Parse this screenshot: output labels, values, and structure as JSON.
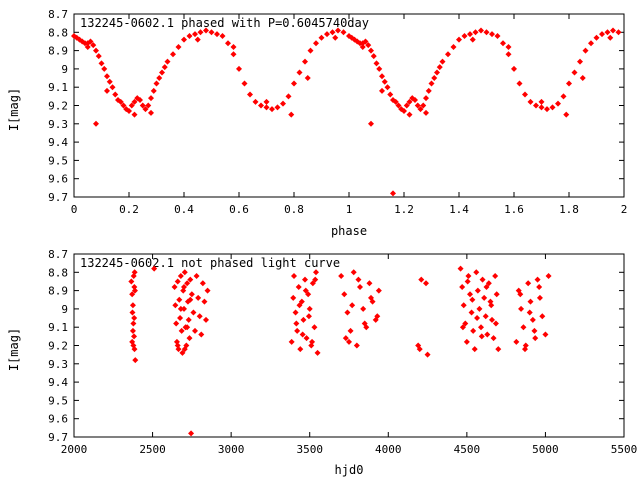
{
  "chart_data": [
    {
      "type": "scatter",
      "title": "132245-0602.1 phased with P=0.6045740day",
      "xlabel": "phase",
      "ylabel": "I[mag]",
      "xlim": [
        0,
        2
      ],
      "ylim": [
        9.7,
        8.7
      ],
      "y_inverted": true,
      "xticks": [
        "0",
        "0.2",
        "0.4",
        "0.6",
        "0.8",
        "1",
        "1.2",
        "1.4",
        "1.6",
        "1.8",
        "2"
      ],
      "yticks": [
        "8.7",
        "8.8",
        "8.9",
        "9",
        "9.1",
        "9.2",
        "9.3",
        "9.4",
        "9.5",
        "9.6",
        "9.7"
      ],
      "marker_color": "#ff0000",
      "series": [
        {
          "x": [
            0.0,
            0.01,
            0.02,
            0.03,
            0.04,
            0.05,
            0.06,
            0.07,
            0.08,
            0.09,
            0.1,
            0.11,
            0.12,
            0.13,
            0.14,
            0.15,
            0.16,
            0.17,
            0.18,
            0.19,
            0.2,
            0.21,
            0.22,
            0.23,
            0.24,
            0.25,
            0.26,
            0.27,
            0.28,
            0.29,
            0.3,
            0.31,
            0.32,
            0.33,
            0.34,
            0.36,
            0.38,
            0.4,
            0.42,
            0.44,
            0.46,
            0.48,
            0.5,
            0.52,
            0.54,
            0.56,
            0.58,
            0.6,
            0.62,
            0.64,
            0.66,
            0.68,
            0.7,
            0.72,
            0.74,
            0.76,
            0.78,
            0.8,
            0.82,
            0.84,
            0.86,
            0.88,
            0.9,
            0.92,
            0.94,
            0.96,
            0.98,
            0.08,
            1.16,
            0.05,
            0.12,
            0.22,
            0.28,
            0.45,
            0.58,
            0.7,
            0.79,
            0.85,
            0.95
          ],
          "y": [
            8.82,
            8.83,
            8.84,
            8.85,
            8.86,
            8.86,
            8.85,
            8.87,
            8.9,
            8.93,
            8.97,
            9.0,
            9.04,
            9.07,
            9.1,
            9.14,
            9.17,
            9.18,
            9.2,
            9.22,
            9.23,
            9.2,
            9.18,
            9.16,
            9.17,
            9.2,
            9.22,
            9.2,
            9.16,
            9.12,
            9.08,
            9.05,
            9.02,
            8.99,
            8.96,
            8.92,
            8.88,
            8.84,
            8.82,
            8.81,
            8.8,
            8.79,
            8.8,
            8.81,
            8.82,
            8.86,
            8.92,
            9.0,
            9.08,
            9.14,
            9.18,
            9.2,
            9.21,
            9.22,
            9.21,
            9.19,
            9.15,
            9.08,
            9.02,
            8.96,
            8.9,
            8.86,
            8.83,
            8.81,
            8.8,
            8.79,
            8.8,
            9.3,
            9.68,
            8.88,
            9.12,
            9.25,
            9.24,
            8.84,
            8.88,
            9.18,
            9.25,
            9.05,
            8.83
          ],
          "mirror_shift": 1
        }
      ]
    },
    {
      "type": "scatter",
      "title": "132245-0602.1 not phased light curve",
      "xlabel": "hjd0",
      "ylabel": "I[mag]",
      "xlim": [
        2000,
        5500
      ],
      "ylim": [
        9.7,
        8.7
      ],
      "y_inverted": true,
      "xticks": [
        "2000",
        "2500",
        "3000",
        "3500",
        "4000",
        "4500",
        "5000",
        "5500"
      ],
      "yticks": [
        "8.7",
        "8.8",
        "8.9",
        "9",
        "9.1",
        "9.2",
        "9.3",
        "9.4",
        "9.5",
        "9.6",
        "9.7"
      ],
      "marker_color": "#ff0000",
      "series": [
        {
          "x": [
            2365,
            2370,
            2372,
            2375,
            2378,
            2380,
            2383,
            2385,
            2388,
            2390,
            2375,
            2382,
            2386,
            2370,
            2378,
            2384,
            2510,
            2640,
            2645,
            2650,
            2655,
            2660,
            2665,
            2670,
            2675,
            2680,
            2685,
            2690,
            2695,
            2700,
            2705,
            2710,
            2715,
            2720,
            2725,
            2730,
            2735,
            2740,
            2745,
            2750,
            2760,
            2770,
            2780,
            2790,
            2800,
            2810,
            2820,
            2830,
            2840,
            2850,
            2660,
            2680,
            2700,
            2720,
            2740,
            2705,
            3385,
            3400,
            3410,
            3420,
            3430,
            3440,
            3450,
            3460,
            3470,
            3480,
            3490,
            3500,
            3510,
            3520,
            3530,
            3540,
            3550,
            3395,
            3415,
            3435,
            3455,
            3475,
            3495,
            3515,
            3535,
            3700,
            3720,
            3740,
            3760,
            3780,
            3800,
            3820,
            3840,
            3860,
            3880,
            3900,
            3920,
            3940,
            3730,
            3770,
            3810,
            3850,
            3890,
            3930,
            3750,
            4190,
            4200,
            4210,
            4240,
            4250,
            4460,
            4470,
            4480,
            4490,
            4500,
            4510,
            4520,
            4530,
            4540,
            4550,
            4560,
            4570,
            4580,
            4590,
            4600,
            4610,
            4620,
            4630,
            4640,
            4650,
            4660,
            4670,
            4680,
            4690,
            4700,
            4475,
            4505,
            4535,
            4565,
            4595,
            4625,
            4655,
            4685,
            4815,
            4830,
            4845,
            4860,
            4875,
            4890,
            4905,
            4920,
            4935,
            4950,
            4965,
            4980,
            5000,
            5020,
            4840,
            4870,
            4900,
            4930,
            4960
          ],
          "y": [
            8.85,
            8.92,
            9.02,
            9.12,
            9.2,
            8.82,
            9.05,
            9.22,
            8.9,
            9.28,
            8.98,
            9.15,
            8.8,
            9.18,
            9.08,
            8.88,
            8.78,
            8.88,
            8.98,
            9.08,
            9.18,
            8.85,
            9.22,
            8.95,
            9.05,
            8.82,
            9.12,
            9.24,
            8.9,
            9.0,
            8.8,
            9.1,
            9.2,
            8.86,
            8.96,
            9.06,
            9.16,
            8.84,
            9.68,
            8.92,
            9.02,
            9.12,
            8.82,
            8.94,
            9.04,
            9.14,
            8.86,
            8.96,
            9.06,
            8.9,
            9.2,
            9.0,
            8.88,
            9.1,
            8.95,
            9.22,
            9.18,
            8.82,
            9.02,
            9.12,
            8.88,
            9.22,
            8.96,
            9.06,
            8.84,
            9.16,
            8.92,
            9.0,
            9.2,
            8.86,
            9.1,
            8.8,
            9.24,
            8.94,
            9.08,
            8.98,
            9.14,
            8.9,
            9.04,
            9.18,
            8.84,
            8.82,
            8.92,
            9.02,
            9.12,
            8.8,
            9.2,
            8.88,
            9.0,
            9.1,
            8.86,
            8.96,
            9.06,
            8.9,
            9.16,
            8.98,
            8.84,
            9.08,
            8.94,
            9.04,
            9.18,
            9.2,
            9.22,
            8.84,
            8.86,
            9.25,
            8.78,
            8.88,
            8.98,
            9.08,
            9.18,
            8.82,
            8.92,
            9.02,
            9.12,
            9.22,
            8.8,
            8.9,
            9.0,
            9.1,
            8.84,
            8.94,
            9.04,
            9.14,
            8.86,
            8.96,
            9.06,
            9.16,
            8.82,
            8.92,
            9.22,
            9.1,
            8.85,
            8.95,
            9.05,
            9.15,
            8.88,
            8.98,
            9.08,
            9.18,
            8.9,
            9.0,
            9.1,
            9.2,
            8.86,
            8.96,
            9.06,
            9.16,
            8.84,
            8.94,
            9.04,
            9.14,
            8.82,
            8.92,
            9.22,
            9.02,
            9.12,
            8.88
          ],
          "mirror_shift": 0
        }
      ]
    }
  ]
}
